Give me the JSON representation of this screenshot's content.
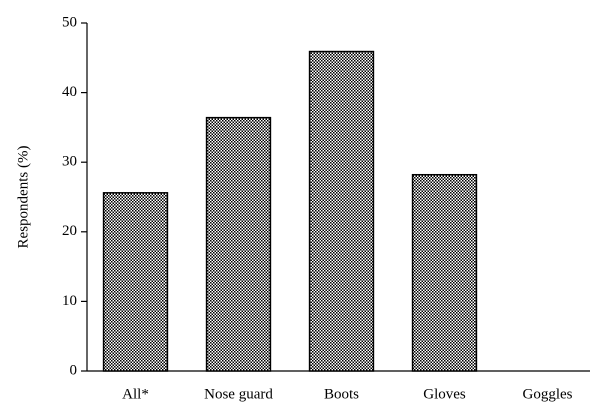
{
  "chart_data": {
    "type": "bar",
    "y_label": "Respondents (%)",
    "categories": [
      "All*",
      "Nose guard",
      "Boots",
      "Gloves",
      "Goggles"
    ],
    "values": [
      25.6,
      36.4,
      45.9,
      28.2,
      0
    ],
    "color": "#000000",
    "ylim": [
      0,
      50
    ],
    "yticks": [
      0,
      10,
      20,
      30,
      40,
      50
    ],
    "grid": false
  }
}
